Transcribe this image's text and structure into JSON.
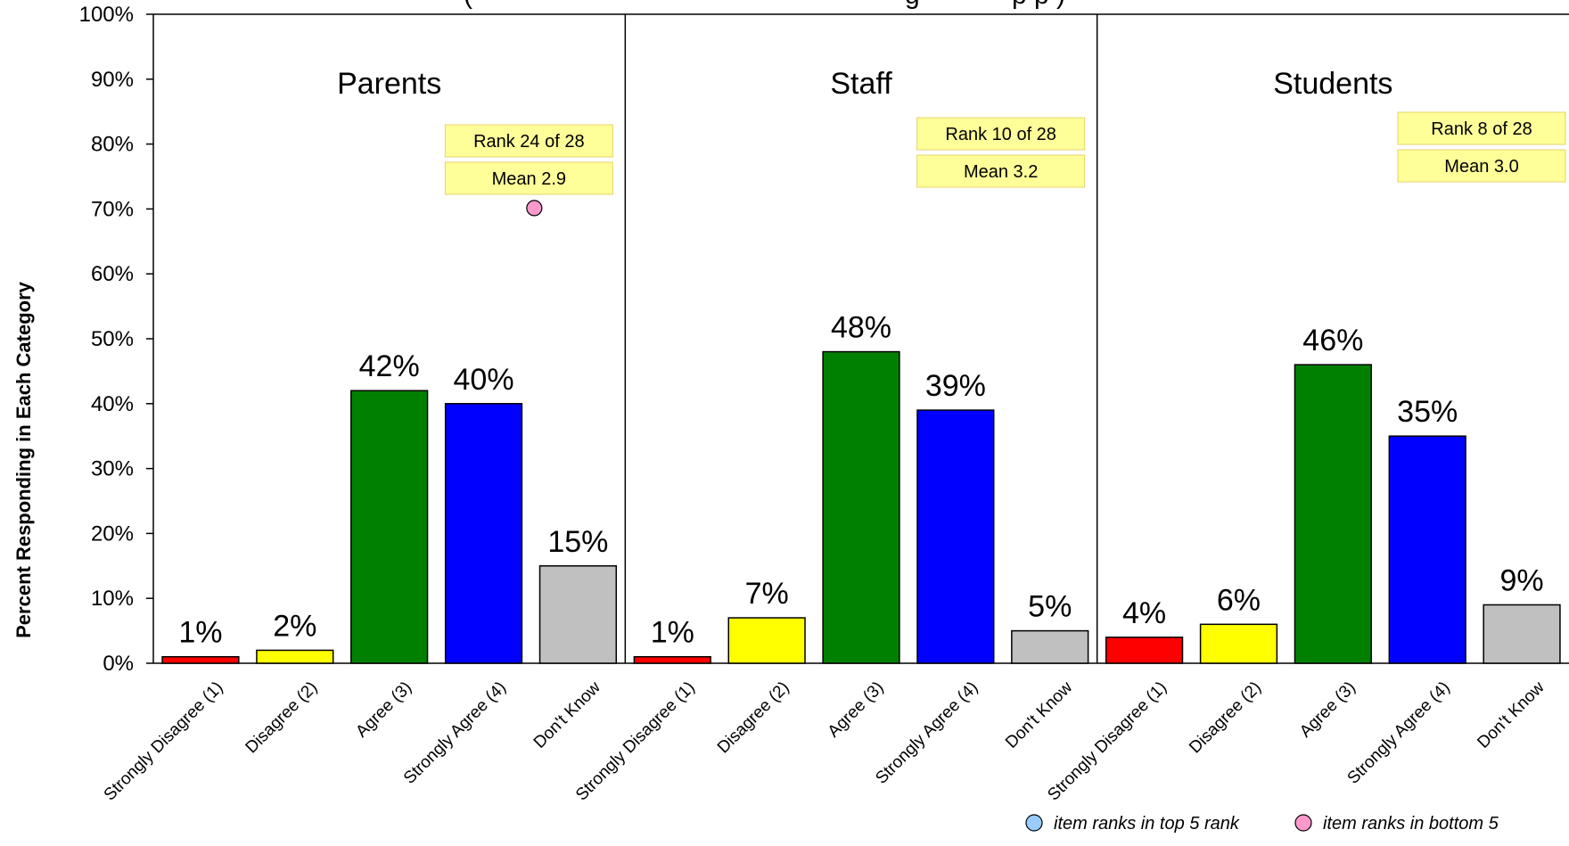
{
  "chart_data": {
    "type": "bar",
    "subtitle_fragment": "(",
    "subtitle_fragment2": "g",
    "subtitle_fragment3": "p p )",
    "ylabel": "Percent Responding in Each Category",
    "ylim": [
      0,
      100
    ],
    "y_ticks": [
      "0%",
      "10%",
      "20%",
      "30%",
      "40%",
      "50%",
      "60%",
      "70%",
      "80%",
      "90%",
      "100%"
    ],
    "categories": [
      "Strongly Disagree (1)",
      "Disagree (2)",
      "Agree (3)",
      "Strongly Agree (4)",
      "Don't Know"
    ],
    "category_colors": [
      "#ff0000",
      "#ffff00",
      "#008000",
      "#0000ff",
      "#c0c0c0"
    ],
    "groups": [
      {
        "name": "Parents",
        "values": [
          1,
          2,
          42,
          40,
          15
        ],
        "labels": [
          "1%",
          "2%",
          "42%",
          "40%",
          "15%"
        ],
        "rank": "Rank 24 of 28",
        "mean": "Mean 2.9",
        "marker": 70,
        "marker_color": "#ff99cc"
      },
      {
        "name": "Staff",
        "values": [
          1,
          7,
          48,
          39,
          5
        ],
        "labels": [
          "1%",
          "7%",
          "48%",
          "39%",
          "5%"
        ],
        "rank": "Rank 10 of 28",
        "mean": "Mean 3.2"
      },
      {
        "name": "Students",
        "values": [
          4,
          6,
          46,
          35,
          9
        ],
        "labels": [
          "4%",
          "6%",
          "46%",
          "35%",
          "9%"
        ],
        "rank": "Rank 8 of 28",
        "mean": "Mean 3.0"
      }
    ],
    "legend": [
      {
        "label": "item ranks in top 5 rank",
        "color": "#99ccff"
      },
      {
        "label": "item ranks in bottom 5",
        "color": "#ff99cc"
      }
    ],
    "grid": false,
    "legend_position": "bottom-right"
  }
}
